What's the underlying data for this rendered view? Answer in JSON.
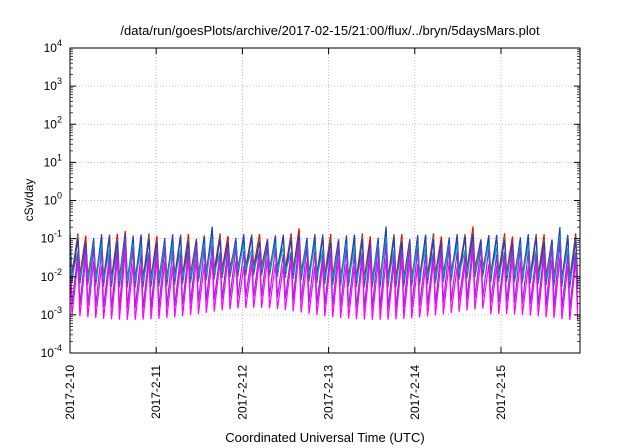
{
  "chart_data": {
    "type": "line",
    "title": "/data/run/goesPlots/archive/2017-02-15/21:00/flux/../bryn/5daysMars.plot",
    "xlabel": "Coordinated Universal Time (UTC)",
    "ylabel": "cSv/day",
    "yscale": "log",
    "ylim": [
      0.0001,
      10000
    ],
    "y_ticks": [
      {
        "value": 0.0001,
        "base": "10",
        "exp": "-4"
      },
      {
        "value": 0.001,
        "base": "10",
        "exp": "-3"
      },
      {
        "value": 0.01,
        "base": "10",
        "exp": "-2"
      },
      {
        "value": 0.1,
        "base": "10",
        "exp": "-1"
      },
      {
        "value": 1,
        "base": "10",
        "exp": "0"
      },
      {
        "value": 10,
        "base": "10",
        "exp": "1"
      },
      {
        "value": 100,
        "base": "10",
        "exp": "2"
      },
      {
        "value": 1000,
        "base": "10",
        "exp": "3"
      },
      {
        "value": 10000,
        "base": "10",
        "exp": "4"
      }
    ],
    "x_ticks": [
      "2017-2-10",
      "2017-2-11",
      "2017-2-12",
      "2017-2-13",
      "2017-2-14",
      "2017-2-15"
    ],
    "xlim": [
      "2017-02-10T00:00",
      "2017-02-15T22:00"
    ],
    "grid": true,
    "series": [
      {
        "color": "#ff0000",
        "peak": 0.11,
        "trough": 0.012
      },
      {
        "color": "#2e8b57",
        "peak": 0.1,
        "trough": 0.007
      },
      {
        "color": "#1f3fbf",
        "peak": 0.105,
        "trough": 0.009
      },
      {
        "color": "#00a0c0",
        "peak": 0.06,
        "trough": 0.01
      },
      {
        "color": "#8a2be2",
        "peak": 0.05,
        "trough": 0.002
      },
      {
        "color": "#ff00ff",
        "peak": 0.025,
        "trough": 0.001
      }
    ],
    "oscillation_period_hours": 2.2
  }
}
